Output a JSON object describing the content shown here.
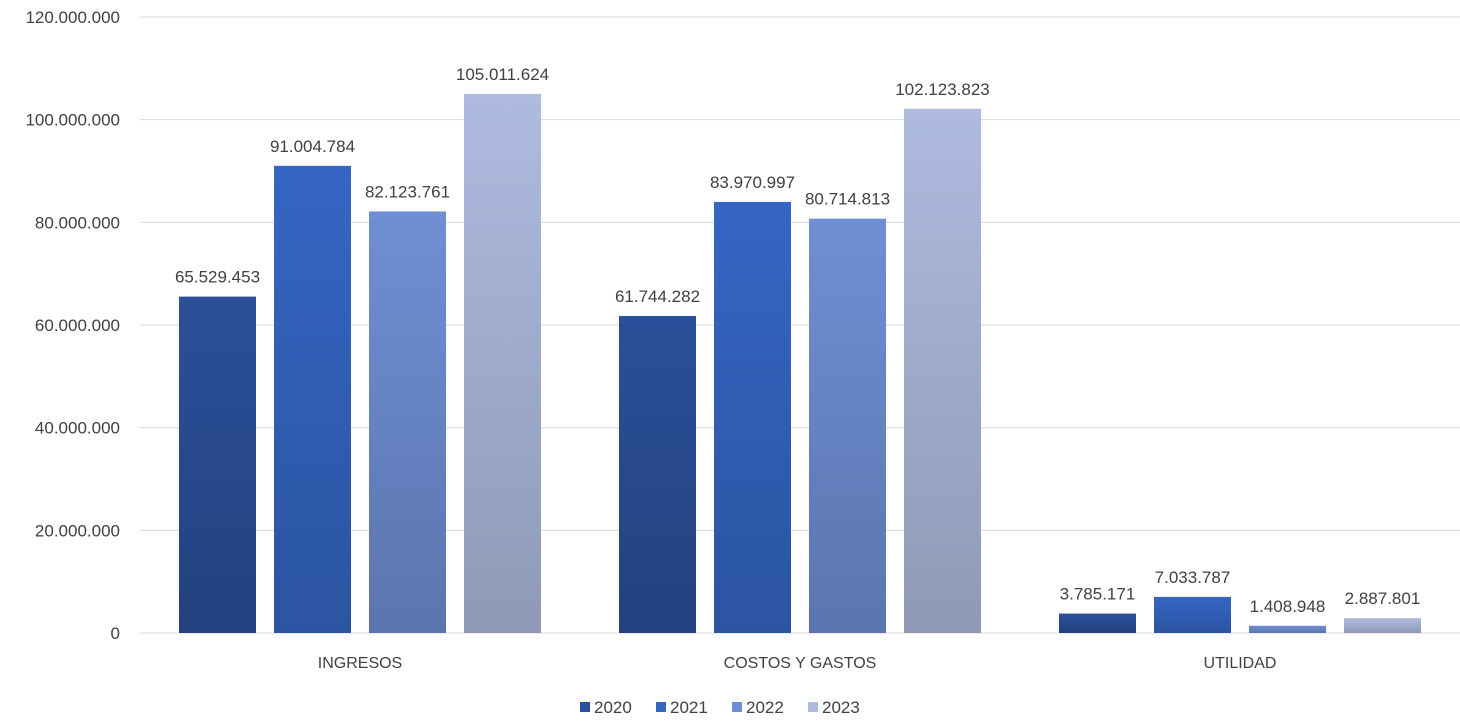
{
  "chart_data": {
    "type": "bar",
    "title": "",
    "xlabel": "",
    "ylabel": "",
    "categories": [
      "INGRESOS",
      "COSTOS Y GASTOS",
      "UTILIDAD"
    ],
    "series": [
      {
        "name": "2020",
        "values": [
          65529453,
          61744282,
          3785171
        ],
        "labels": [
          "65.529.453",
          "61.744.282",
          "3.785.171"
        ],
        "color": "#2b4f9a"
      },
      {
        "name": "2021",
        "values": [
          91004784,
          83970997,
          7033787
        ],
        "labels": [
          "91.004.784",
          "83.970.997",
          "7.033.787"
        ],
        "color": "#3566c4"
      },
      {
        "name": "2022",
        "values": [
          82123761,
          80714813,
          1408948
        ],
        "labels": [
          "82.123.761",
          "80.714.813",
          "1.408.948"
        ],
        "color": "#6f8fd4"
      },
      {
        "name": "2023",
        "values": [
          105011624,
          102123823,
          2887801
        ],
        "labels": [
          "105.011.624",
          "102.123.823",
          "2.887.801"
        ],
        "color": "#aebbdf"
      }
    ],
    "yticks": [
      0,
      20000000,
      40000000,
      60000000,
      80000000,
      100000000,
      120000000
    ],
    "ytick_labels": [
      "0",
      "20.000.000",
      "40.000.000",
      "60.000.000",
      "80.000.000",
      "100.000.000",
      "120.000.000"
    ],
    "ylim": [
      0,
      120000000
    ],
    "grid": true,
    "legend": "bottom"
  }
}
